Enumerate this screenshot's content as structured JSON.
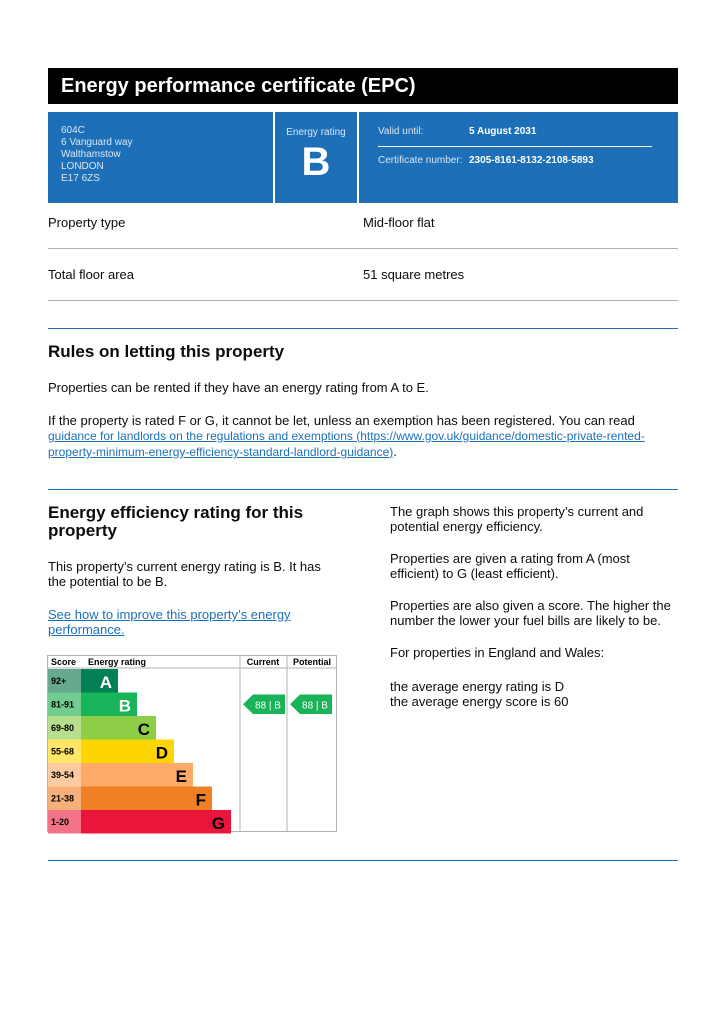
{
  "header": {
    "title": "Energy performance certificate (EPC)"
  },
  "summary": {
    "address": [
      "604C",
      "6 Vanguard way",
      "Walthamstow",
      "LONDON",
      "E17 6ZS"
    ],
    "rating_label": "Energy rating",
    "rating": "B",
    "valid_label": "Valid until:",
    "valid_date": "5 August 2031",
    "cert_label": "Certificate number:",
    "cert_number": "2305-8161-8132-2108-5893"
  },
  "details": [
    [
      "Property type",
      "Mid-floor flat"
    ],
    [
      "Total floor area",
      "51 square metres"
    ]
  ],
  "rules": {
    "heading": "Rules on letting this property",
    "para1": "Properties can be rented if they have an energy rating from A to E.",
    "para2": "If the property is rated F or G, it cannot be let, unless an exemption has been registered. You can read ",
    "link": "guidance for landlords on the regulations and exemptions (https://www.gov.uk/guidance/domestic-private-rented-property-minimum-energy-efficiency-standard-landlord-guidance)",
    "para2_end": "."
  },
  "efficiency": {
    "heading": "Energy efficiency rating for this property",
    "para1": "This property’s current energy rating is B. It has the potential to be B.",
    "link": "See how to improve this property’s energy performance.",
    "right": [
      "The graph shows this property’s current and potential energy efficiency.",
      "Properties are given a rating from A (most efficient) to G (least efficient).",
      "Properties are also given a score. The higher the number the lower your fuel bills are likely to be.",
      "For properties in England and Wales:"
    ],
    "averages": [
      "the average energy rating is D",
      "the average energy score is 60"
    ]
  },
  "graph": {
    "headers": [
      "Score",
      "Energy rating",
      "Current",
      "Potential"
    ],
    "rows": [
      [
        "92+",
        "A"
      ],
      [
        "81-91",
        "B"
      ],
      [
        "69-80",
        "C"
      ],
      [
        "55-68",
        "D"
      ],
      [
        "39-54",
        "E"
      ],
      [
        "21-38",
        "F"
      ],
      [
        "1-20",
        "G"
      ]
    ],
    "current": "88 | B",
    "potential": "88 | B"
  }
}
